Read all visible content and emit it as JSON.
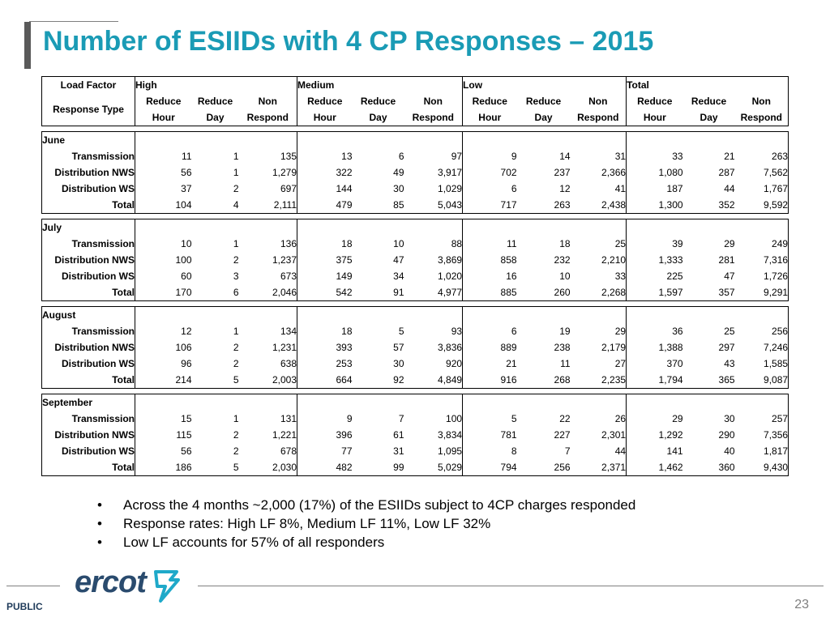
{
  "title": "Number of ESIIDs with 4 CP Responses – 2015",
  "table": {
    "corner_top": "Load Factor",
    "corner_bottom": "Response Type",
    "groups": [
      "High",
      "Medium",
      "Low",
      "Total"
    ],
    "sub_top": [
      "Reduce",
      "Reduce",
      "Non"
    ],
    "sub_bottom": [
      "Hour",
      "Day",
      "Respond"
    ],
    "sections": [
      {
        "name": "June",
        "rows": [
          {
            "label": "Transmission",
            "values": [
              "11",
              "1",
              "135",
              "13",
              "6",
              "97",
              "9",
              "14",
              "31",
              "33",
              "21",
              "263"
            ]
          },
          {
            "label": "Distribution NWS",
            "values": [
              "56",
              "1",
              "1,279",
              "322",
              "49",
              "3,917",
              "702",
              "237",
              "2,366",
              "1,080",
              "287",
              "7,562"
            ]
          },
          {
            "label": "Distribution WS",
            "values": [
              "37",
              "2",
              "697",
              "144",
              "30",
              "1,029",
              "6",
              "12",
              "41",
              "187",
              "44",
              "1,767"
            ]
          },
          {
            "label": "Total",
            "values": [
              "104",
              "4",
              "2,111",
              "479",
              "85",
              "5,043",
              "717",
              "263",
              "2,438",
              "1,300",
              "352",
              "9,592"
            ]
          }
        ]
      },
      {
        "name": "July",
        "rows": [
          {
            "label": "Transmission",
            "values": [
              "10",
              "1",
              "136",
              "18",
              "10",
              "88",
              "11",
              "18",
              "25",
              "39",
              "29",
              "249"
            ]
          },
          {
            "label": "Distribution NWS",
            "values": [
              "100",
              "2",
              "1,237",
              "375",
              "47",
              "3,869",
              "858",
              "232",
              "2,210",
              "1,333",
              "281",
              "7,316"
            ]
          },
          {
            "label": "Distribution WS",
            "values": [
              "60",
              "3",
              "673",
              "149",
              "34",
              "1,020",
              "16",
              "10",
              "33",
              "225",
              "47",
              "1,726"
            ]
          },
          {
            "label": "Total",
            "values": [
              "170",
              "6",
              "2,046",
              "542",
              "91",
              "4,977",
              "885",
              "260",
              "2,268",
              "1,597",
              "357",
              "9,291"
            ]
          }
        ]
      },
      {
        "name": "August",
        "rows": [
          {
            "label": "Transmission",
            "values": [
              "12",
              "1",
              "134",
              "18",
              "5",
              "93",
              "6",
              "19",
              "29",
              "36",
              "25",
              "256"
            ]
          },
          {
            "label": "Distribution NWS",
            "values": [
              "106",
              "2",
              "1,231",
              "393",
              "57",
              "3,836",
              "889",
              "238",
              "2,179",
              "1,388",
              "297",
              "7,246"
            ]
          },
          {
            "label": "Distribution WS",
            "values": [
              "96",
              "2",
              "638",
              "253",
              "30",
              "920",
              "21",
              "11",
              "27",
              "370",
              "43",
              "1,585"
            ]
          },
          {
            "label": "Total",
            "values": [
              "214",
              "5",
              "2,003",
              "664",
              "92",
              "4,849",
              "916",
              "268",
              "2,235",
              "1,794",
              "365",
              "9,087"
            ]
          }
        ]
      },
      {
        "name": "September",
        "rows": [
          {
            "label": "Transmission",
            "values": [
              "15",
              "1",
              "131",
              "9",
              "7",
              "100",
              "5",
              "22",
              "26",
              "29",
              "30",
              "257"
            ]
          },
          {
            "label": "Distribution NWS",
            "values": [
              "115",
              "2",
              "1,221",
              "396",
              "61",
              "3,834",
              "781",
              "227",
              "2,301",
              "1,292",
              "290",
              "7,356"
            ]
          },
          {
            "label": "Distribution WS",
            "values": [
              "56",
              "2",
              "678",
              "77",
              "31",
              "1,095",
              "8",
              "7",
              "44",
              "141",
              "40",
              "1,817"
            ]
          },
          {
            "label": "Total",
            "values": [
              "186",
              "5",
              "2,030",
              "482",
              "99",
              "5,029",
              "794",
              "256",
              "2,371",
              "1,462",
              "360",
              "9,430"
            ]
          }
        ]
      }
    ]
  },
  "bullets": [
    "Across the 4 months ~2,000 (17%) of the ESIIDs subject to 4CP charges responded",
    "Response rates: High LF 8%, Medium LF 11%, Low LF 32%",
    "Low LF accounts for 57% of all responders"
  ],
  "bullet_char": "•",
  "footer": {
    "logo_text": "ercot",
    "classification": "PUBLIC",
    "page_number": "23"
  },
  "colors": {
    "title": "#1a9bb5",
    "logo_text": "#2a4b6e",
    "logo_icon": "#1fa9c9"
  }
}
